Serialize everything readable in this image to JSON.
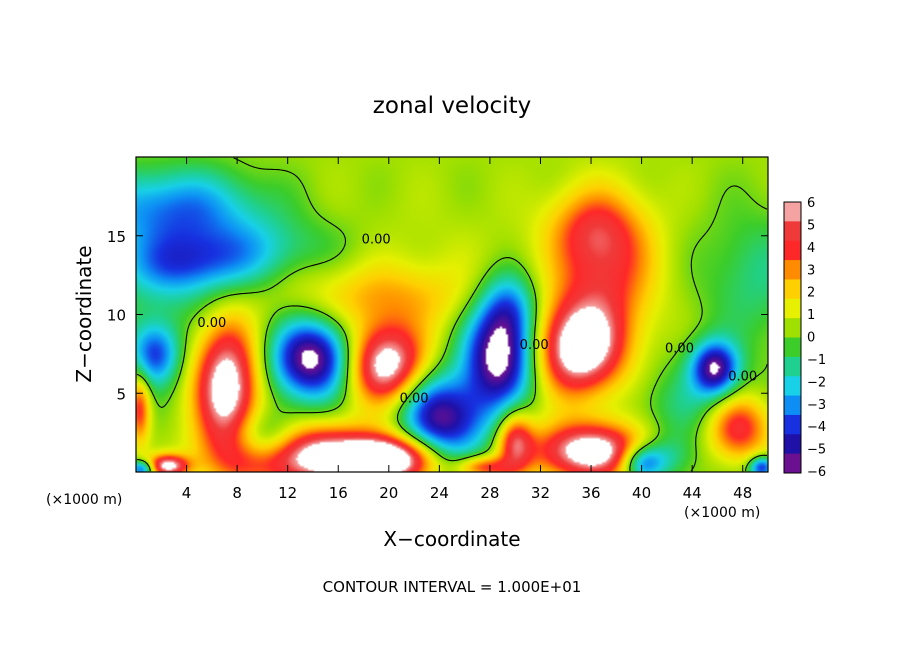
{
  "chart_data": {
    "type": "heatmap",
    "title": "zonal velocity",
    "xlabel": "X−coordinate",
    "ylabel": "Z−coordinate",
    "x_unit_left": "(×1000 m)",
    "x_unit_right": "(×1000 m)",
    "footer": "CONTOUR INTERVAL = 1.000E+01",
    "xlim": [
      0,
      50
    ],
    "ylim": [
      0,
      20
    ],
    "xticks": [
      4,
      8,
      12,
      16,
      20,
      24,
      28,
      32,
      36,
      40,
      44,
      48
    ],
    "xtick_labels": [
      "4",
      "8",
      "12",
      "16",
      "20",
      "24",
      "28",
      "32",
      "36",
      "40",
      "44",
      "48"
    ],
    "yticks": [
      5,
      10,
      15
    ],
    "ytick_labels": [
      "5",
      "10",
      "15"
    ],
    "contour_labels": [
      "0.00",
      "0.00",
      "0.00",
      "0.00",
      "0.00",
      "0.00"
    ],
    "colorbar": {
      "levels": [
        6,
        5,
        4,
        3,
        2,
        1,
        0,
        -1,
        -2,
        -3,
        -4,
        -5,
        -6
      ],
      "labels": [
        "6",
        "5",
        "4",
        "3",
        "2",
        "1",
        "0",
        "−1",
        "−2",
        "−3",
        "−4",
        "−5",
        "−6"
      ],
      "colors": [
        "#f4a2a2",
        "#f03a3a",
        "#ff2828",
        "#ff8c00",
        "#ffd000",
        "#e6f000",
        "#a0e000",
        "#3ccd2a",
        "#1fd090",
        "#18d0e8",
        "#0d8ef5",
        "#1730e0",
        "#1f10a8",
        "#6a1090"
      ]
    },
    "blobs": [
      {
        "x": 3.0,
        "z": 16.8,
        "sx": 5.0,
        "sz": 1.8,
        "v": -3.8
      },
      {
        "x": 9.0,
        "z": 14.2,
        "sx": 6.0,
        "sz": 1.5,
        "v": -2.2
      },
      {
        "x": 4.0,
        "z": 13.0,
        "sx": 4.0,
        "sz": 1.4,
        "v": -3.2
      },
      {
        "x": 1.5,
        "z": 7.5,
        "sx": 1.4,
        "sz": 1.4,
        "v": -4.5
      },
      {
        "x": 7.2,
        "z": 5.3,
        "sx": 1.8,
        "sz": 3.0,
        "v": 7.0
      },
      {
        "x": 14.0,
        "z": 7.2,
        "sx": 2.3,
        "sz": 1.8,
        "v": -7.0
      },
      {
        "x": 19.8,
        "z": 6.8,
        "sx": 2.3,
        "sz": 1.8,
        "v": 7.0
      },
      {
        "x": 28.8,
        "z": 7.3,
        "sx": 2.0,
        "sz": 2.3,
        "v": -7.0
      },
      {
        "x": 29.5,
        "z": 10.5,
        "sx": 1.6,
        "sz": 1.6,
        "v": -3.2
      },
      {
        "x": 35.0,
        "z": 7.8,
        "sx": 2.5,
        "sz": 2.1,
        "v": 7.0
      },
      {
        "x": 37.2,
        "z": 12.5,
        "sx": 2.8,
        "sz": 3.0,
        "v": 3.6
      },
      {
        "x": 36.2,
        "z": 15.5,
        "sx": 2.6,
        "sz": 1.8,
        "v": 2.6
      },
      {
        "x": 45.8,
        "z": 6.6,
        "sx": 1.3,
        "sz": 1.2,
        "v": -6.0
      },
      {
        "x": 47.6,
        "z": 2.8,
        "sx": 1.8,
        "sz": 1.5,
        "v": 4.8
      },
      {
        "x": 0.3,
        "z": 4.0,
        "sx": 0.6,
        "sz": 1.6,
        "v": 4.0
      },
      {
        "x": 13.5,
        "z": 1.0,
        "sx": 4.5,
        "sz": 1.4,
        "v": 7.0
      },
      {
        "x": 10.0,
        "z": 2.0,
        "sx": 2.0,
        "sz": 1.2,
        "v": -4.0
      },
      {
        "x": 20.0,
        "z": 0.8,
        "sx": 2.5,
        "sz": 1.0,
        "v": 7.0
      },
      {
        "x": 25.0,
        "z": 3.2,
        "sx": 2.2,
        "sz": 1.8,
        "v": -4.0
      },
      {
        "x": 30.0,
        "z": 2.0,
        "sx": 1.0,
        "sz": 1.4,
        "v": 4.5
      },
      {
        "x": 36.0,
        "z": 1.3,
        "sx": 3.3,
        "sz": 1.3,
        "v": 7.0
      },
      {
        "x": 40.0,
        "z": 0.6,
        "sx": 1.2,
        "sz": 0.8,
        "v": -4.5
      },
      {
        "x": 27.5,
        "z": 0.3,
        "sx": 1.5,
        "sz": 0.5,
        "v": 4.0
      },
      {
        "x": 2.5,
        "z": 0.4,
        "sx": 1.2,
        "sz": 0.5,
        "v": 6.0
      },
      {
        "x": 0.5,
        "z": 0.2,
        "sx": 0.7,
        "sz": 0.4,
        "v": -5.0
      },
      {
        "x": 49.5,
        "z": 0.3,
        "sx": 0.7,
        "sz": 0.5,
        "v": -5.0
      },
      {
        "x": 42.0,
        "z": 1.0,
        "sx": 1.5,
        "sz": 1.0,
        "v": -2.0
      },
      {
        "x": 44.0,
        "z": 4.0,
        "sx": 3.0,
        "sz": 2.0,
        "v": -1.5
      },
      {
        "x": 20.0,
        "z": 11.0,
        "sx": 5.0,
        "sz": 1.5,
        "v": 1.8
      },
      {
        "x": 18.0,
        "z": 13.0,
        "sx": 8.0,
        "sz": 2.5,
        "v": 0.8
      },
      {
        "x": 3.0,
        "z": 10.5,
        "sx": 4.0,
        "sz": 1.5,
        "v": -0.8
      },
      {
        "x": 49.0,
        "z": 12.5,
        "sx": 3.0,
        "sz": 3.0,
        "v": -1.6
      },
      {
        "x": 23.0,
        "z": 4.0,
        "sx": 2.0,
        "sz": 2.0,
        "v": -3.0
      }
    ]
  }
}
